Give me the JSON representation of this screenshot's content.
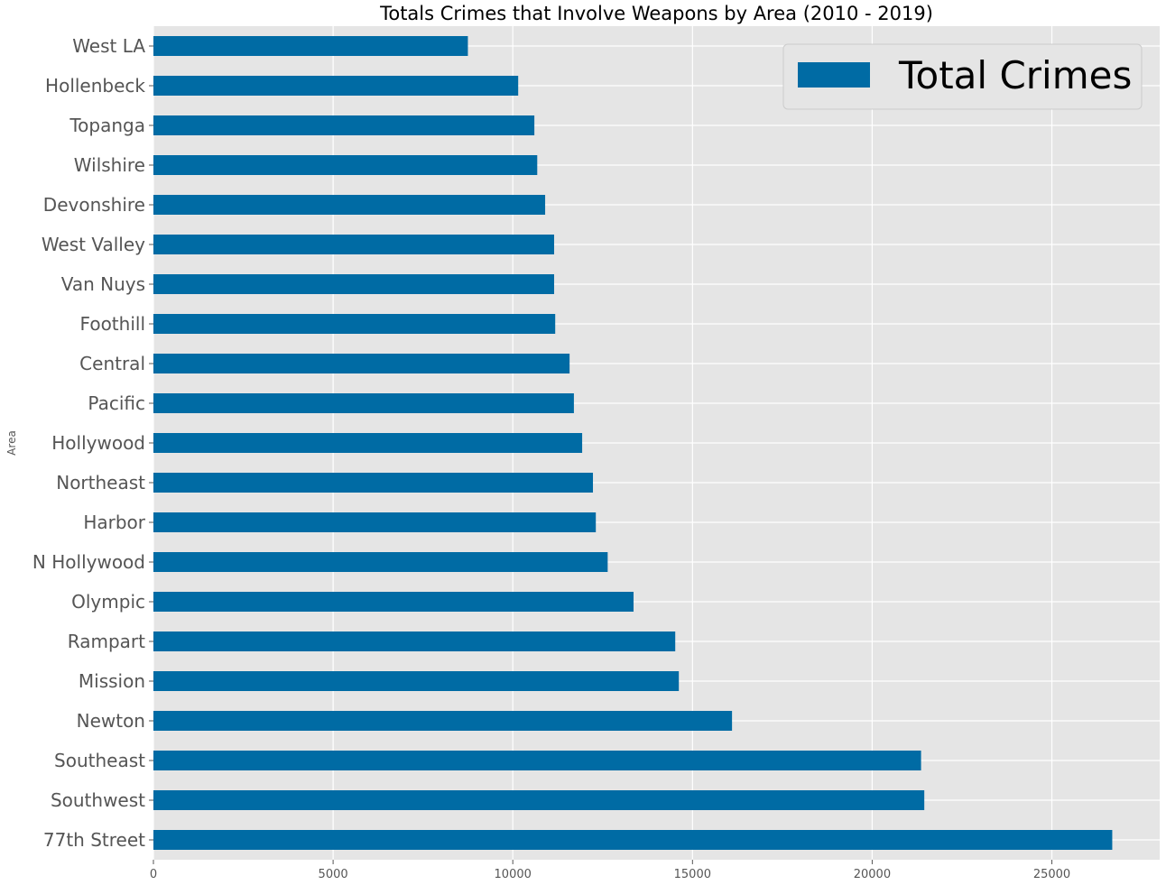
{
  "chart_data": {
    "type": "bar",
    "orientation": "horizontal",
    "title": "Totals Crimes that Involve Weapons by Area (2010 - 2019)",
    "xlabel": "",
    "ylabel": "Area",
    "xlim": [
      0,
      28000
    ],
    "xticks": [
      0,
      5000,
      10000,
      15000,
      20000,
      25000
    ],
    "xtick_labels": [
      "0",
      "5000",
      "10000",
      "15000",
      "20000",
      "25000"
    ],
    "grid": true,
    "legend_position": "top-right",
    "categories": [
      "West LA",
      "Hollenbeck",
      "Topanga",
      "Wilshire",
      "Devonshire",
      "West Valley",
      "Van Nuys",
      "Foothill",
      "Central",
      "Pacific",
      "Hollywood",
      "Northeast",
      "Harbor",
      "N Hollywood",
      "Olympic",
      "Rampart",
      "Mission",
      "Newton",
      "Southeast",
      "Southwest",
      "77th Street"
    ],
    "series": [
      {
        "name": "Total Crimes",
        "color": "#006ba4",
        "values": [
          8750,
          10150,
          10600,
          10680,
          10900,
          11150,
          11150,
          11180,
          11580,
          11700,
          11930,
          12230,
          12310,
          12640,
          13360,
          14520,
          14620,
          16100,
          21360,
          21450,
          26680
        ]
      }
    ],
    "colors": {
      "background": "#e5e5e5",
      "grid": "#ffffff",
      "bar": "#006ba4"
    }
  }
}
